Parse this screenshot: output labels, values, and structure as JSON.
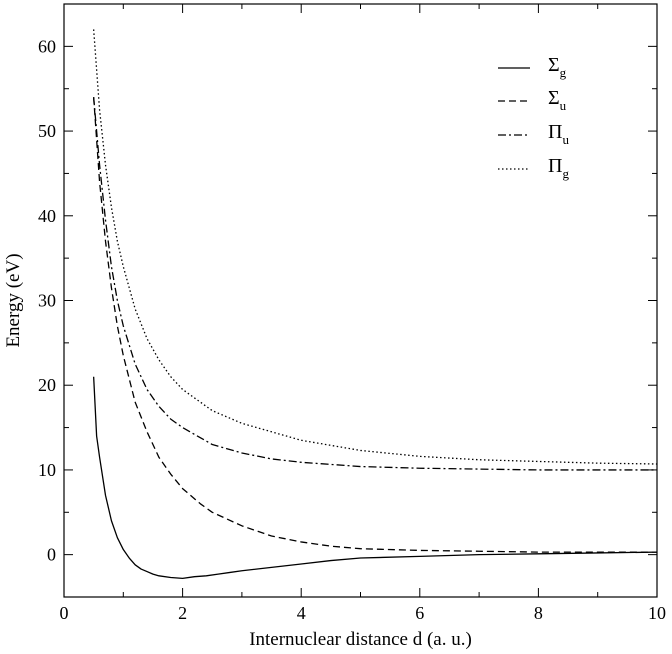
{
  "chart_data": {
    "type": "line",
    "xlabel": "Internuclear distance d (a. u.)",
    "ylabel": "Energy (eV)",
    "xlim": [
      0,
      10
    ],
    "ylim": [
      -5,
      65
    ],
    "x_ticks": [
      0,
      2,
      4,
      6,
      8,
      10
    ],
    "y_ticks": [
      0,
      10,
      20,
      30,
      40,
      50,
      60
    ],
    "grid": false,
    "legend_position": "top-right",
    "series": [
      {
        "name": "Σ",
        "sub": "g",
        "style": "solid",
        "x": [
          0.5,
          0.55,
          0.6,
          0.7,
          0.8,
          0.9,
          1.0,
          1.1,
          1.2,
          1.3,
          1.4,
          1.5,
          1.6,
          1.8,
          2.0,
          2.2,
          2.4,
          2.6,
          2.8,
          3.0,
          3.5,
          4.0,
          4.5,
          5.0,
          6.0,
          7.0,
          8.0,
          9.0,
          10.0
        ],
        "y": [
          21.0,
          14.0,
          11.5,
          7.0,
          4.0,
          2.0,
          0.6,
          -0.4,
          -1.2,
          -1.7,
          -2.0,
          -2.3,
          -2.5,
          -2.7,
          -2.8,
          -2.6,
          -2.5,
          -2.3,
          -2.1,
          -1.9,
          -1.5,
          -1.1,
          -0.7,
          -0.4,
          -0.2,
          0.0,
          0.1,
          0.2,
          0.3
        ]
      },
      {
        "name": "Σ",
        "sub": "u",
        "style": "dashed",
        "x": [
          0.5,
          0.6,
          0.7,
          0.8,
          0.9,
          1.0,
          1.2,
          1.4,
          1.6,
          1.8,
          2.0,
          2.3,
          2.5,
          3.0,
          3.5,
          4.0,
          4.5,
          5.0,
          6.0,
          7.0,
          8.0,
          9.0,
          10.0
        ],
        "y": [
          54.0,
          44.0,
          37.0,
          31.5,
          27.0,
          23.5,
          18.0,
          14.5,
          11.5,
          9.5,
          7.8,
          6.0,
          5.0,
          3.4,
          2.2,
          1.5,
          1.0,
          0.7,
          0.5,
          0.4,
          0.3,
          0.3,
          0.3
        ]
      },
      {
        "name": "Π",
        "sub": "u",
        "style": "dashdot",
        "x": [
          0.5,
          0.6,
          0.7,
          0.8,
          0.9,
          1.0,
          1.2,
          1.4,
          1.6,
          1.8,
          2.0,
          2.5,
          3.0,
          3.5,
          4.0,
          5.0,
          6.0,
          7.0,
          8.0,
          9.0,
          10.0
        ],
        "y": [
          54.0,
          46.0,
          39.5,
          34.0,
          30.0,
          27.0,
          22.5,
          19.5,
          17.5,
          16.0,
          15.0,
          13.0,
          12.0,
          11.3,
          10.9,
          10.4,
          10.2,
          10.1,
          10.0,
          10.0,
          10.0
        ]
      },
      {
        "name": "Π",
        "sub": "g",
        "style": "dotted",
        "x": [
          0.5,
          0.6,
          0.7,
          0.8,
          0.9,
          1.0,
          1.2,
          1.4,
          1.6,
          1.8,
          2.0,
          2.5,
          3.0,
          3.5,
          4.0,
          5.0,
          6.0,
          7.0,
          8.0,
          9.0,
          10.0
        ],
        "y": [
          62.0,
          52.5,
          46.0,
          41.0,
          37.0,
          34.0,
          29.0,
          25.5,
          23.0,
          21.0,
          19.5,
          17.0,
          15.5,
          14.5,
          13.5,
          12.3,
          11.6,
          11.2,
          11.0,
          10.8,
          10.7
        ]
      }
    ]
  }
}
